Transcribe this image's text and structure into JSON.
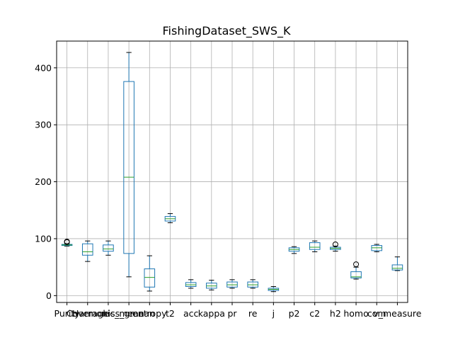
{
  "chart_data": {
    "type": "box",
    "title": "FishingDataset_SWS_K",
    "xlabel": "",
    "ylabel": "",
    "ylim": [
      -12,
      447
    ],
    "yticks": [
      0,
      100,
      200,
      300,
      400
    ],
    "grid": true,
    "colors": {
      "box": "#1f77b4",
      "median": "#2ca02c",
      "grid": "#b0b0b0",
      "axis": "#000000"
    },
    "categories": [
      "Purity",
      "Coverage",
      "Harmonic_mean",
      "kiss_gmean",
      "entropy",
      "t2",
      "acc",
      "kappa",
      "pr",
      "re",
      "j",
      "p2",
      "c2",
      "h2",
      "homo",
      "com",
      "v_measure"
    ],
    "boxes": [
      {
        "q1": 88,
        "median": 89,
        "q3": 90,
        "whislo": 87,
        "whishi": 91,
        "fliers": [
          94,
          95
        ]
      },
      {
        "q1": 71,
        "median": 77,
        "q3": 91,
        "whislo": 60,
        "whishi": 96,
        "fliers": []
      },
      {
        "q1": 78,
        "median": 82,
        "q3": 89,
        "whislo": 71,
        "whishi": 96,
        "fliers": []
      },
      {
        "q1": 74,
        "median": 208,
        "q3": 376,
        "whislo": 33,
        "whishi": 427,
        "fliers": []
      },
      {
        "q1": 15,
        "median": 32,
        "q3": 47,
        "whislo": 8,
        "whishi": 70,
        "fliers": []
      },
      {
        "q1": 131,
        "median": 135,
        "q3": 139,
        "whislo": 128,
        "whishi": 144,
        "fliers": []
      },
      {
        "q1": 16,
        "median": 19,
        "q3": 23,
        "whislo": 13,
        "whishi": 28,
        "fliers": []
      },
      {
        "q1": 13,
        "median": 17,
        "q3": 22,
        "whislo": 10,
        "whishi": 27,
        "fliers": []
      },
      {
        "q1": 15,
        "median": 19,
        "q3": 24,
        "whislo": 13,
        "whishi": 28,
        "fliers": []
      },
      {
        "q1": 15,
        "median": 19,
        "q3": 24,
        "whislo": 13,
        "whishi": 28,
        "fliers": []
      },
      {
        "q1": 9,
        "median": 11,
        "q3": 13,
        "whislo": 7,
        "whishi": 16,
        "fliers": []
      },
      {
        "q1": 78,
        "median": 81,
        "q3": 84,
        "whislo": 74,
        "whishi": 86,
        "fliers": []
      },
      {
        "q1": 81,
        "median": 85,
        "q3": 93,
        "whislo": 77,
        "whishi": 96,
        "fliers": []
      },
      {
        "q1": 81,
        "median": 83,
        "q3": 85,
        "whislo": 78,
        "whishi": 87,
        "fliers": [
          90
        ]
      },
      {
        "q1": 31,
        "median": 33,
        "q3": 42,
        "whislo": 29,
        "whishi": 50,
        "fliers": [
          55
        ]
      },
      {
        "q1": 79,
        "median": 84,
        "q3": 88,
        "whislo": 77,
        "whishi": 90,
        "fliers": []
      },
      {
        "q1": 45,
        "median": 48,
        "q3": 54,
        "whislo": 44,
        "whishi": 68,
        "fliers": []
      }
    ]
  }
}
